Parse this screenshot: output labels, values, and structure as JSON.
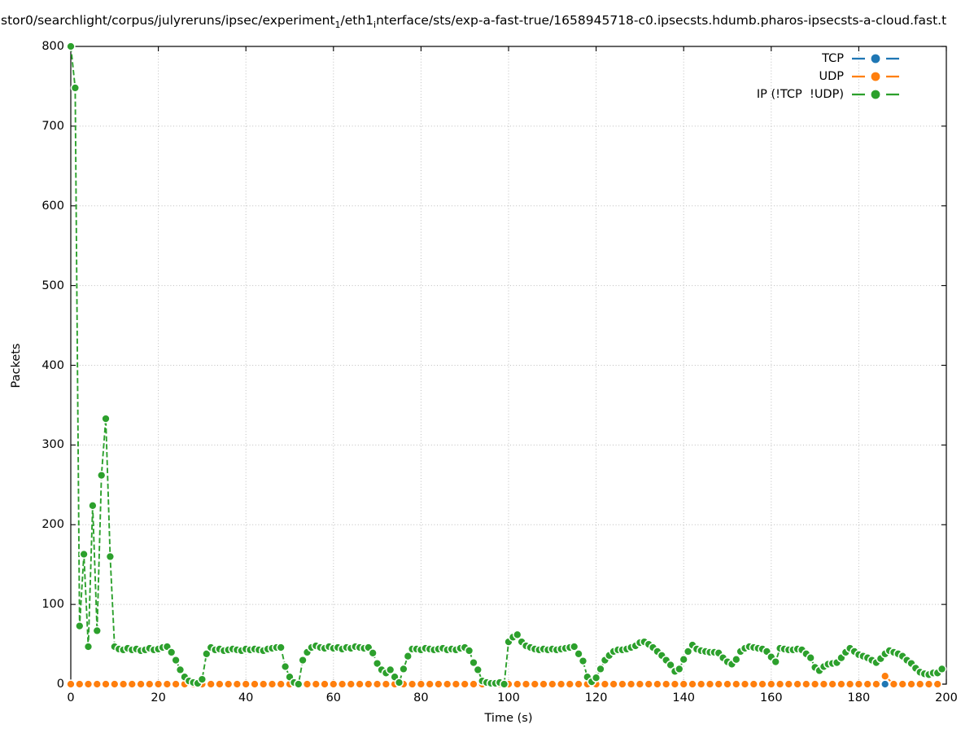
{
  "title": {
    "part1": "stor0/searchlight/corpus/julyreruns/ipsec/experiment",
    "sub1": "1",
    "part2": "/eth1",
    "sub2": "i",
    "part3": "nterface/sts/exp-a-fast-true/1658945718-c0.ipsecsts.hdumb.pharos-ipsecsts-a-cloud.fast.t"
  },
  "chart_data": {
    "type": "line",
    "title": "stor0/searchlight/corpus/julyreruns/ipsec/experiment_1/eth1_interface/sts/exp-a-fast-true/1658945718-c0.ipsecsts.hdumb.pharos-ipsecsts-a-cloud.fast.t",
    "xlabel": "Time (s)",
    "ylabel": "Packets",
    "xlim": [
      0,
      200
    ],
    "ylim": [
      0,
      800
    ],
    "xticks": [
      0,
      20,
      40,
      60,
      80,
      100,
      120,
      140,
      160,
      180,
      200
    ],
    "yticks": [
      0,
      100,
      200,
      300,
      400,
      500,
      600,
      700,
      800
    ],
    "grid": "dotted",
    "grid_color": "#bdbdbd",
    "legend_position": "upper right inside",
    "marker": "filled-circle-white-edge",
    "linestyle": "dashed",
    "series": [
      {
        "name": "TCP",
        "color": "#1f77b4",
        "x_start": 0,
        "x_step": 2,
        "values": [
          0,
          0,
          0,
          0,
          0,
          0,
          0,
          0,
          0,
          0,
          0,
          0,
          0,
          0,
          0,
          0,
          0,
          0,
          0,
          0,
          0,
          0,
          0,
          0,
          0,
          0,
          0,
          0,
          0,
          0,
          0,
          0,
          0,
          0,
          0,
          0,
          0,
          0,
          0,
          0,
          0,
          0,
          0,
          0,
          0,
          0,
          0,
          0,
          0,
          0,
          0,
          0,
          0,
          0,
          0,
          0,
          0,
          0,
          0,
          0,
          0,
          0,
          0,
          0,
          0,
          0,
          0,
          0,
          0,
          0,
          0,
          0,
          0,
          0,
          0,
          0,
          0,
          0,
          0,
          0,
          0,
          0,
          0,
          0,
          0,
          0,
          0,
          0,
          0,
          0,
          0,
          0,
          0,
          0,
          0,
          0,
          0,
          0,
          0,
          0
        ]
      },
      {
        "name": "UDP",
        "color": "#ff7f0e",
        "x_start": 0,
        "x_step": 2,
        "values": [
          0,
          0,
          0,
          0,
          0,
          0,
          0,
          0,
          0,
          0,
          0,
          0,
          0,
          0,
          0,
          0,
          0,
          0,
          0,
          0,
          0,
          0,
          0,
          0,
          0,
          0,
          0,
          0,
          0,
          0,
          0,
          0,
          0,
          0,
          0,
          0,
          0,
          0,
          0,
          0,
          0,
          0,
          0,
          0,
          0,
          0,
          0,
          0,
          0,
          0,
          0,
          0,
          0,
          0,
          0,
          0,
          0,
          0,
          0,
          0,
          0,
          0,
          0,
          0,
          0,
          0,
          0,
          0,
          0,
          0,
          0,
          0,
          0,
          0,
          0,
          0,
          0,
          0,
          0,
          0,
          0,
          0,
          0,
          0,
          0,
          0,
          0,
          0,
          0,
          0,
          0,
          0,
          0,
          10,
          0,
          0,
          0,
          0,
          0,
          0
        ]
      },
      {
        "name": "IP (!TCP  !UDP)",
        "color": "#2ca02c",
        "x_start": 0,
        "x_step": 1,
        "values": [
          800,
          748,
          73,
          163,
          47,
          224,
          67,
          262,
          333,
          160,
          47,
          44,
          43,
          45,
          43,
          44,
          42,
          43,
          45,
          43,
          44,
          46,
          47,
          40,
          30,
          18,
          9,
          4,
          2,
          1,
          6,
          38,
          46,
          43,
          44,
          42,
          43,
          44,
          43,
          42,
          44,
          43,
          44,
          43,
          42,
          44,
          45,
          46,
          46,
          22,
          9,
          2,
          0,
          30,
          40,
          46,
          48,
          46,
          45,
          47,
          45,
          46,
          44,
          46,
          45,
          47,
          46,
          45,
          46,
          39,
          26,
          18,
          14,
          18,
          9,
          2,
          19,
          35,
          44,
          44,
          43,
          45,
          44,
          43,
          44,
          45,
          43,
          44,
          43,
          45,
          46,
          42,
          27,
          18,
          4,
          2,
          1,
          1,
          2,
          0,
          53,
          59,
          62,
          53,
          48,
          46,
          44,
          43,
          44,
          43,
          44,
          43,
          44,
          45,
          46,
          47,
          38,
          29,
          9,
          3,
          8,
          19,
          30,
          36,
          41,
          43,
          43,
          44,
          46,
          48,
          52,
          53,
          50,
          46,
          41,
          36,
          30,
          24,
          16,
          19,
          31,
          41,
          49,
          44,
          42,
          41,
          40,
          40,
          39,
          33,
          28,
          25,
          31,
          41,
          45,
          47,
          46,
          45,
          44,
          41,
          34,
          28,
          45,
          44,
          43,
          43,
          44,
          43,
          38,
          33,
          21,
          17,
          22,
          25,
          26,
          27,
          33,
          40,
          45,
          41,
          37,
          35,
          33,
          30,
          27,
          32,
          38,
          42,
          40,
          38,
          35,
          30,
          26,
          20,
          15,
          13,
          12,
          14,
          14,
          19
        ]
      }
    ]
  }
}
